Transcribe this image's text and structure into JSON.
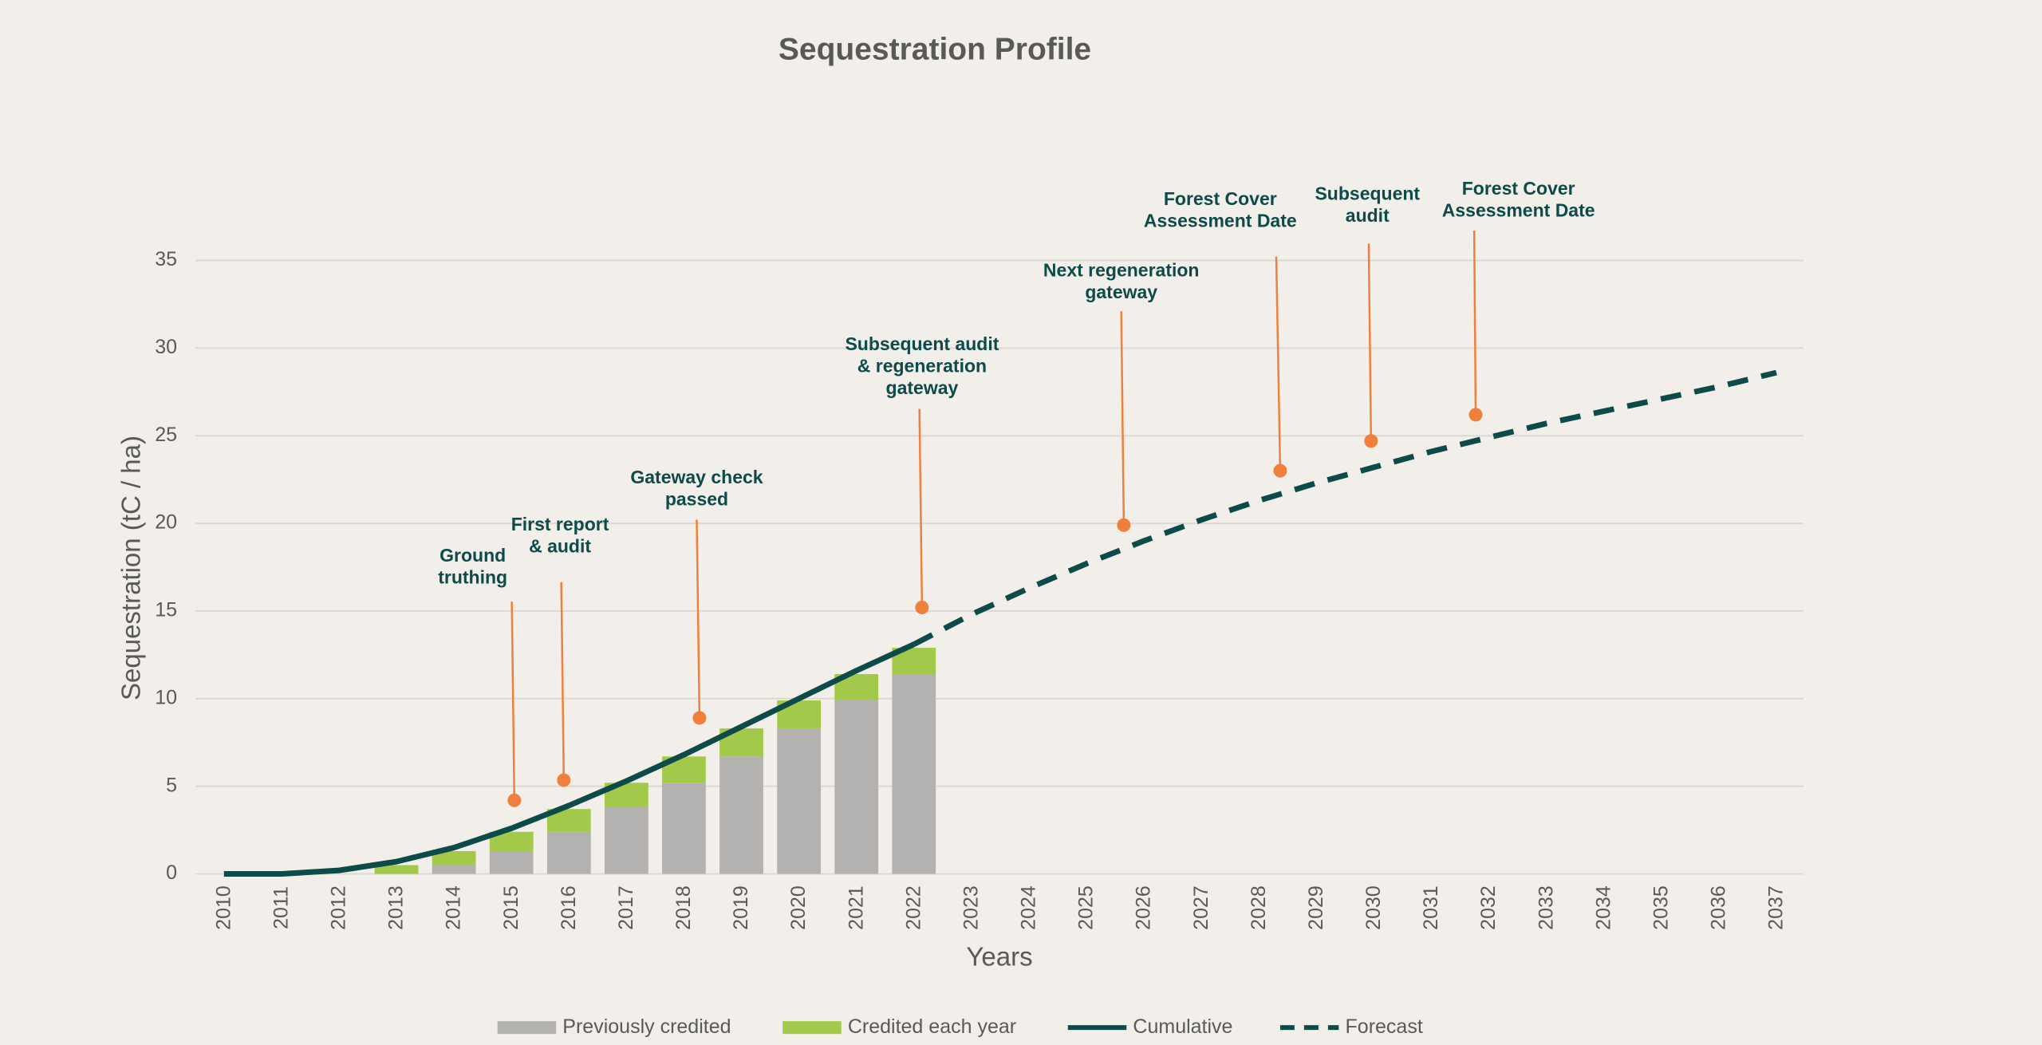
{
  "chart_data": {
    "type": "bar",
    "title": "Sequestration Profile",
    "x_label": "Years",
    "y_label": "Sequestration (tC / ha)",
    "categories": [
      "2010",
      "2011",
      "2012",
      "2013",
      "2014",
      "2015",
      "2016",
      "2017",
      "2018",
      "2019",
      "2020",
      "2021",
      "2022",
      "2023",
      "2024",
      "2025",
      "2026",
      "2027",
      "2028",
      "2029",
      "2030",
      "2031",
      "2032",
      "2033",
      "2034",
      "2035",
      "2036",
      "2037"
    ],
    "ylim": [
      0,
      35
    ],
    "yticks": [
      0,
      5,
      10,
      15,
      20,
      25,
      30,
      35
    ],
    "grid": true,
    "legend": "bottom",
    "series": [
      {
        "name": "Previously credited",
        "kind": "bar",
        "color": "#b3b2b0",
        "values": [
          0,
          0,
          0,
          0,
          0.5,
          1.3,
          2.4,
          3.8,
          5.2,
          6.7,
          8.3,
          9.9,
          11.4,
          null,
          null,
          null,
          null,
          null,
          null,
          null,
          null,
          null,
          null,
          null,
          null,
          null,
          null,
          null
        ]
      },
      {
        "name": "Credited each year",
        "kind": "bar",
        "color": "#a3c94a",
        "values": [
          0,
          0,
          0,
          0.5,
          0.8,
          1.1,
          1.3,
          1.4,
          1.5,
          1.6,
          1.6,
          1.5,
          1.5,
          null,
          null,
          null,
          null,
          null,
          null,
          null,
          null,
          null,
          null,
          null,
          null,
          null,
          null,
          null
        ]
      },
      {
        "name": "Cumulative",
        "kind": "line",
        "color": "#0d4a4a",
        "values": [
          0,
          0,
          0.2,
          0.7,
          1.5,
          2.6,
          3.9,
          5.3,
          6.8,
          8.4,
          10.0,
          11.6,
          13.1,
          null,
          null,
          null,
          null,
          null,
          null,
          null,
          null,
          null,
          null,
          null,
          null,
          null,
          null,
          null
        ]
      },
      {
        "name": "Forecast",
        "kind": "dashed",
        "color": "#0d4a4a",
        "values": [
          null,
          null,
          null,
          null,
          null,
          null,
          null,
          null,
          null,
          null,
          null,
          null,
          13.1,
          14.8,
          16.3,
          17.7,
          19.0,
          20.2,
          21.3,
          22.3,
          23.2,
          24.1,
          24.9,
          25.7,
          26.4,
          27.1,
          27.8,
          28.6
        ]
      }
    ],
    "annotation_color": "#f07f3c",
    "annotations": [
      {
        "label": [
          "Ground",
          "truthing"
        ],
        "x": 2015.05,
        "y": 4.2
      },
      {
        "label": [
          "First report",
          "& audit"
        ],
        "x": 2015.91,
        "y": 5.35
      },
      {
        "label": [
          "Gateway check",
          "passed"
        ],
        "x": 2018.27,
        "y": 8.9
      },
      {
        "label": [
          "Subsequent audit",
          "& regeneration",
          "gateway"
        ],
        "x": 2022.14,
        "y": 15.2
      },
      {
        "label": [
          "Next regeneration",
          "gateway"
        ],
        "x": 2025.65,
        "y": 19.9
      },
      {
        "label": [
          "Forest Cover",
          "Assessment Date"
        ],
        "x": 2028.37,
        "y": 23.0
      },
      {
        "label": [
          "Subsequent",
          "audit"
        ],
        "x": 2029.95,
        "y": 24.7
      },
      {
        "label": [
          "Forest Cover",
          "Assessment Date"
        ],
        "x": 2031.77,
        "y": 26.2
      }
    ]
  }
}
